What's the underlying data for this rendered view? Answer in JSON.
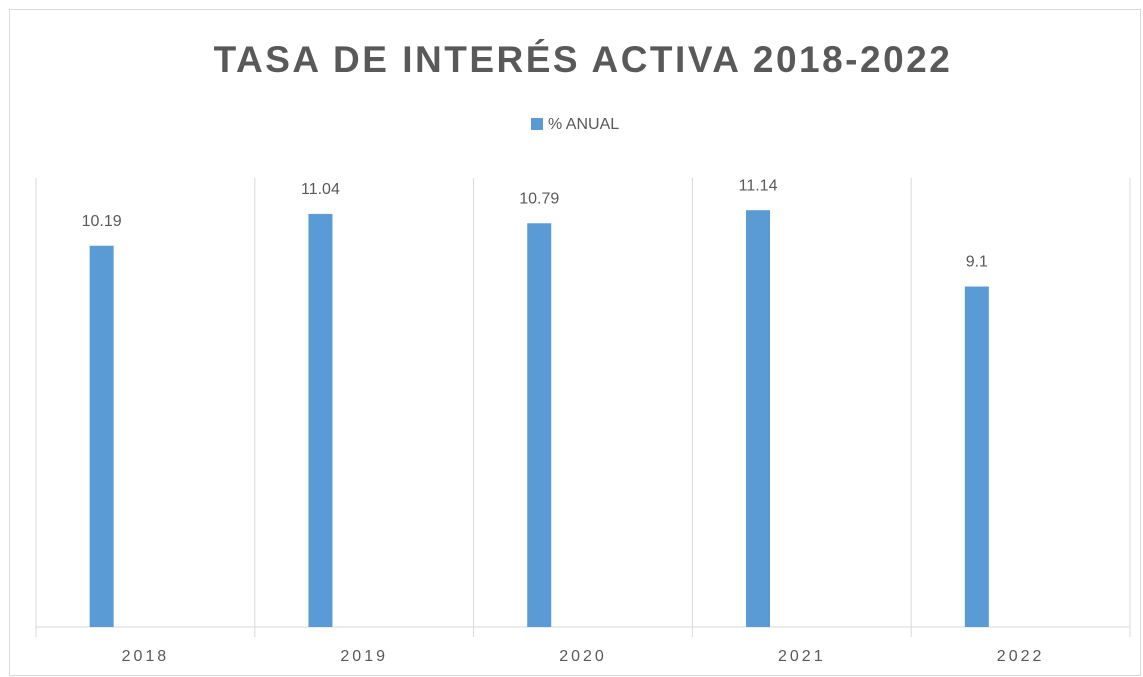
{
  "chart_data": {
    "type": "bar",
    "title": "TASA DE INTERÉS ACTIVA 2018-2022",
    "categories": [
      "2018",
      "2019",
      "2020",
      "2021",
      "2022"
    ],
    "series": [
      {
        "name": "% ANUAL",
        "color": "#5b9bd5",
        "values": [
          10.19,
          11.04,
          10.79,
          11.14,
          9.1
        ]
      }
    ],
    "ylim": [
      0,
      12
    ],
    "grid": true,
    "legend": "top"
  }
}
